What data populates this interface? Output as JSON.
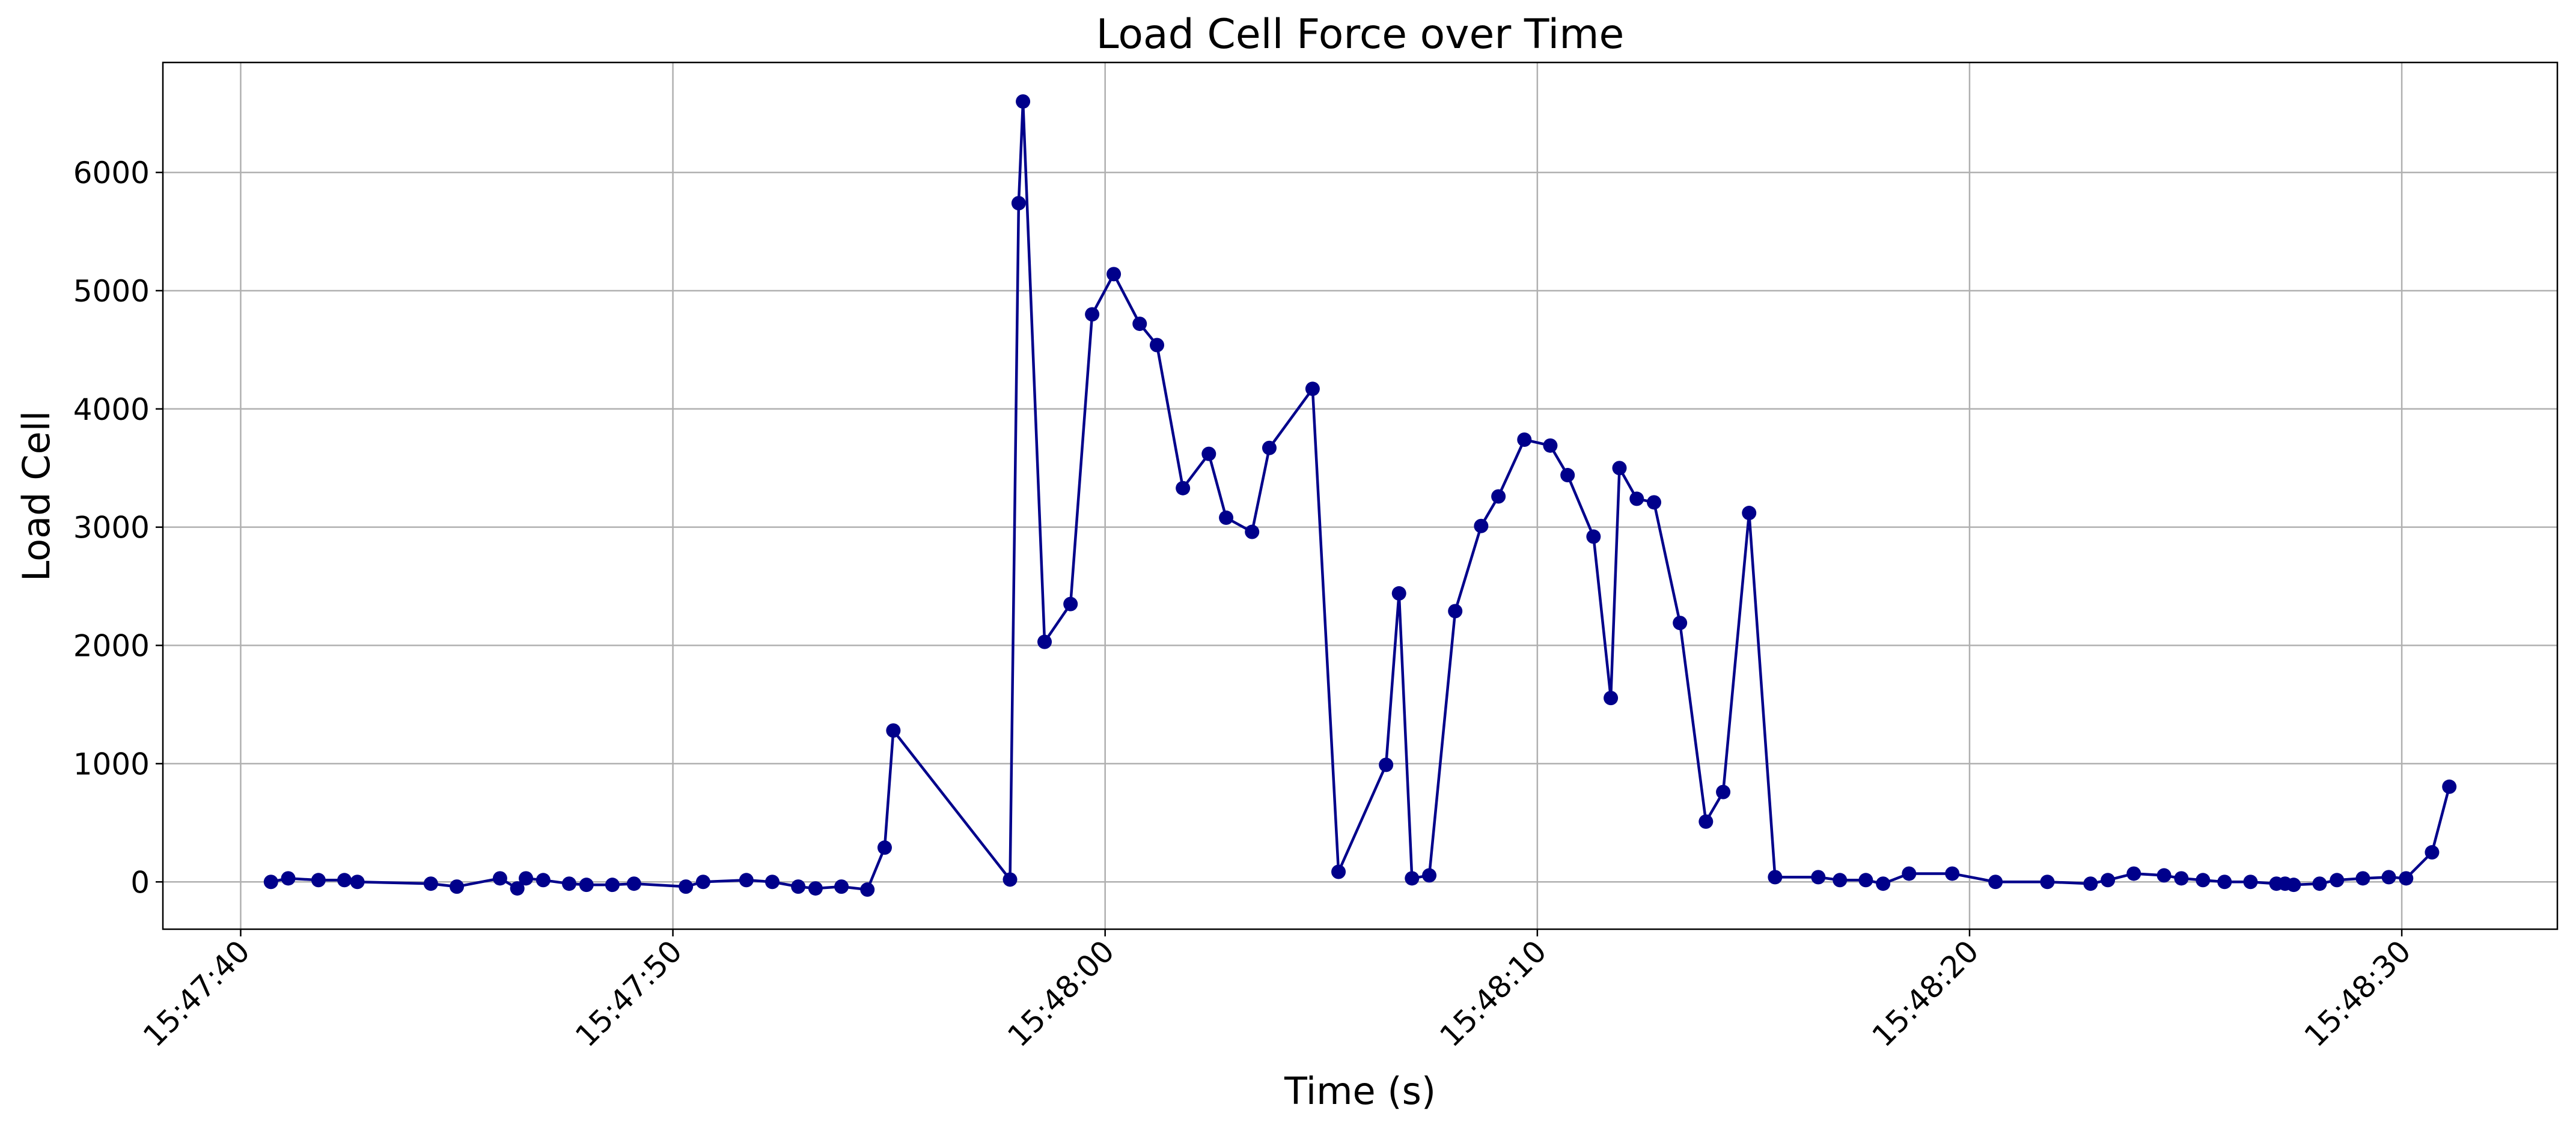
{
  "chart_data": {
    "type": "line",
    "title": "Load Cell Force over Time",
    "xlabel": "Time (s)",
    "ylabel": "Load Cell",
    "xlim": [
      "15:47:38.2",
      "15:48:33.6"
    ],
    "ylim": [
      -400,
      6930
    ],
    "xticks": [
      "15:47:40",
      "15:47:50",
      "15:48:00",
      "15:48:10",
      "15:48:20",
      "15:48:30"
    ],
    "yticks": [
      0,
      1000,
      2000,
      3000,
      4000,
      5000,
      6000
    ],
    "grid": true,
    "markers": true,
    "color": "#00008b",
    "series": [
      {
        "x": [
          "15:47:40.7",
          "15:47:41.1",
          "15:47:41.8",
          "15:47:42.4",
          "15:47:42.7",
          "15:47:44.4",
          "15:47:45.0",
          "15:47:46.0",
          "15:47:46.4",
          "15:47:46.6",
          "15:47:47.0",
          "15:47:47.6",
          "15:47:48.0",
          "15:47:48.6",
          "15:47:49.1",
          "15:47:50.3",
          "15:47:50.7",
          "15:47:51.7",
          "15:47:52.3",
          "15:47:52.9",
          "15:47:53.3",
          "15:47:53.9",
          "15:47:54.5",
          "15:47:54.9",
          "15:47:55.1",
          "15:47:57.8",
          "15:47:58.0",
          "15:47:58.1",
          "15:47:58.6",
          "15:47:59.2",
          "15:47:59.7",
          "15:48:00.2",
          "15:48:00.8",
          "15:48:01.2",
          "15:48:01.8",
          "15:48:02.4",
          "15:48:02.8",
          "15:48:03.4",
          "15:48:03.8",
          "15:48:04.8",
          "15:48:05.4",
          "15:48:06.5",
          "15:48:06.8",
          "15:48:07.1",
          "15:48:07.5",
          "15:48:08.1",
          "15:48:08.7",
          "15:48:09.1",
          "15:48:09.7",
          "15:48:10.3",
          "15:48:10.7",
          "15:48:11.3",
          "15:48:11.7",
          "15:48:11.9",
          "15:48:12.3",
          "15:48:12.7",
          "15:48:13.3",
          "15:48:13.9",
          "15:48:14.3",
          "15:48:14.9",
          "15:48:15.5",
          "15:48:16.5",
          "15:48:17.0",
          "15:48:17.6",
          "15:48:18.0",
          "15:48:18.6",
          "15:48:19.6",
          "15:48:20.6",
          "15:48:21.8",
          "15:48:22.8",
          "15:48:23.2",
          "15:48:23.8",
          "15:48:24.5",
          "15:48:24.9",
          "15:48:25.4",
          "15:48:25.9",
          "15:48:26.5",
          "15:48:27.1",
          "15:48:27.3",
          "15:48:27.5",
          "15:48:28.1",
          "15:48:28.5",
          "15:48:29.1",
          "15:48:29.7",
          "15:48:30.1",
          "15:48:30.7",
          "15:48:31.1"
        ],
        "y": [
          0,
          30,
          15,
          15,
          0,
          -15,
          -40,
          30,
          -55,
          30,
          15,
          -15,
          -25,
          -25,
          -15,
          -40,
          0,
          15,
          0,
          -40,
          -55,
          -40,
          -65,
          290,
          1280,
          20,
          5740,
          6600,
          2030,
          2350,
          4800,
          5140,
          4720,
          4540,
          3330,
          3620,
          3080,
          2960,
          3670,
          4170,
          85,
          990,
          2440,
          30,
          55,
          2290,
          3010,
          3260,
          3740,
          3690,
          3440,
          2920,
          1555,
          3500,
          3240,
          3210,
          2190,
          510,
          760,
          3120,
          40,
          40,
          15,
          15,
          -15,
          70,
          70,
          0,
          0,
          -15,
          15,
          70,
          55,
          30,
          15,
          0,
          0,
          -15,
          -15,
          -25,
          -15,
          15,
          30,
          40,
          30,
          250,
          805
        ]
      }
    ]
  }
}
